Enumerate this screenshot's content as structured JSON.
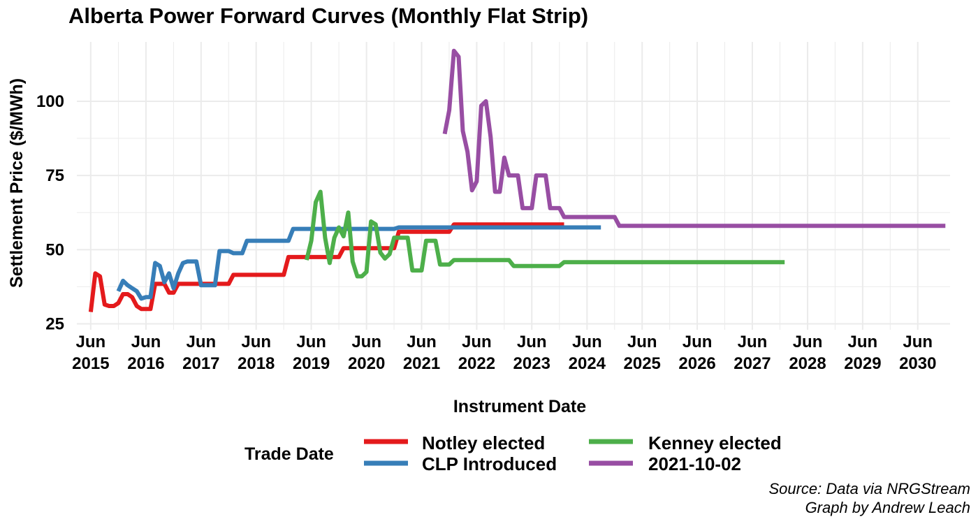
{
  "chart_data": {
    "type": "line",
    "title": "Alberta Power Forward Curves (Monthly Flat Strip)",
    "xlabel": "Instrument Date",
    "ylabel": "Settlement Price ($/MWh)",
    "xlim": [
      "2015-03-01",
      "2031-01-01"
    ],
    "ylim": [
      23,
      120
    ],
    "yticks": [
      25,
      50,
      75,
      100
    ],
    "xticks": [
      {
        "date": "2015-06-01",
        "line1": "Jun",
        "line2": "2015"
      },
      {
        "date": "2016-06-01",
        "line1": "Jun",
        "line2": "2016"
      },
      {
        "date": "2017-06-01",
        "line1": "Jun",
        "line2": "2017"
      },
      {
        "date": "2018-06-01",
        "line1": "Jun",
        "line2": "2018"
      },
      {
        "date": "2019-06-01",
        "line1": "Jun",
        "line2": "2019"
      },
      {
        "date": "2020-06-01",
        "line1": "Jun",
        "line2": "2020"
      },
      {
        "date": "2021-06-01",
        "line1": "Jun",
        "line2": "2021"
      },
      {
        "date": "2022-06-01",
        "line1": "Jun",
        "line2": "2022"
      },
      {
        "date": "2023-06-01",
        "line1": "Jun",
        "line2": "2023"
      },
      {
        "date": "2024-06-01",
        "line1": "Jun",
        "line2": "2024"
      },
      {
        "date": "2025-06-01",
        "line1": "Jun",
        "line2": "2025"
      },
      {
        "date": "2026-06-01",
        "line1": "Jun",
        "line2": "2026"
      },
      {
        "date": "2027-06-01",
        "line1": "Jun",
        "line2": "2027"
      },
      {
        "date": "2028-06-01",
        "line1": "Jun",
        "line2": "2028"
      },
      {
        "date": "2029-06-01",
        "line1": "Jun",
        "line2": "2029"
      },
      {
        "date": "2030-06-01",
        "line1": "Jun",
        "line2": "2030"
      }
    ],
    "grid": true,
    "legend": {
      "title": "Trade Date",
      "position": "bottom"
    },
    "series": [
      {
        "name": "Notley elected",
        "color": "#E41A1C",
        "points": [
          [
            "2015-06-01",
            29
          ],
          [
            "2015-07-01",
            42
          ],
          [
            "2015-08-01",
            41
          ],
          [
            "2015-09-01",
            31.5
          ],
          [
            "2015-10-01",
            31
          ],
          [
            "2015-11-01",
            31
          ],
          [
            "2015-12-01",
            32
          ],
          [
            "2016-01-01",
            35
          ],
          [
            "2016-02-01",
            35
          ],
          [
            "2016-03-01",
            34
          ],
          [
            "2016-04-01",
            31
          ],
          [
            "2016-05-01",
            30
          ],
          [
            "2016-06-01",
            30
          ],
          [
            "2016-07-01",
            30
          ],
          [
            "2016-08-01",
            38.5
          ],
          [
            "2016-09-01",
            38.5
          ],
          [
            "2016-10-01",
            38.5
          ],
          [
            "2016-11-01",
            35.5
          ],
          [
            "2016-12-01",
            35.5
          ],
          [
            "2017-01-01",
            38.5
          ],
          [
            "2017-12-01",
            38.5
          ],
          [
            "2018-01-01",
            41.5
          ],
          [
            "2018-12-01",
            41.5
          ],
          [
            "2019-01-01",
            47.5
          ],
          [
            "2019-12-01",
            47.5
          ],
          [
            "2020-01-01",
            50.5
          ],
          [
            "2020-12-01",
            50.5
          ],
          [
            "2021-01-01",
            56
          ],
          [
            "2021-12-01",
            56
          ],
          [
            "2022-01-01",
            58.5
          ],
          [
            "2024-01-01",
            58.5
          ]
        ]
      },
      {
        "name": "CLP Introduced",
        "color": "#377EB8",
        "points": [
          [
            "2015-12-01",
            36
          ],
          [
            "2016-01-01",
            39.5
          ],
          [
            "2016-02-01",
            38
          ],
          [
            "2016-03-01",
            37
          ],
          [
            "2016-04-01",
            36
          ],
          [
            "2016-05-01",
            33.5
          ],
          [
            "2016-06-01",
            34
          ],
          [
            "2016-07-01",
            34
          ],
          [
            "2016-08-01",
            45.5
          ],
          [
            "2016-09-01",
            44.5
          ],
          [
            "2016-10-01",
            39
          ],
          [
            "2016-11-01",
            42
          ],
          [
            "2016-12-01",
            37
          ],
          [
            "2017-01-01",
            42
          ],
          [
            "2017-02-01",
            45.5
          ],
          [
            "2017-03-01",
            46
          ],
          [
            "2017-04-01",
            46
          ],
          [
            "2017-05-01",
            46
          ],
          [
            "2017-06-01",
            38
          ],
          [
            "2017-07-01",
            38
          ],
          [
            "2017-08-01",
            38
          ],
          [
            "2017-09-01",
            38
          ],
          [
            "2017-10-01",
            49.5
          ],
          [
            "2017-11-01",
            49.5
          ],
          [
            "2017-12-01",
            49.5
          ],
          [
            "2018-01-01",
            48.8
          ],
          [
            "2018-02-01",
            48.8
          ],
          [
            "2018-03-01",
            48.8
          ],
          [
            "2018-04-01",
            53
          ],
          [
            "2018-12-01",
            53
          ],
          [
            "2019-01-01",
            53
          ],
          [
            "2019-02-01",
            57
          ],
          [
            "2020-12-01",
            57
          ],
          [
            "2021-01-01",
            57.5
          ],
          [
            "2024-09-01",
            57.5
          ]
        ]
      },
      {
        "name": "Kenney elected",
        "color": "#4DAF4A",
        "points": [
          [
            "2019-05-01",
            46.5
          ],
          [
            "2019-06-01",
            53
          ],
          [
            "2019-07-01",
            66
          ],
          [
            "2019-08-01",
            69.5
          ],
          [
            "2019-09-01",
            54
          ],
          [
            "2019-10-01",
            45.5
          ],
          [
            "2019-11-01",
            54
          ],
          [
            "2019-12-01",
            57.5
          ],
          [
            "2020-01-01",
            54.5
          ],
          [
            "2020-02-01",
            62.5
          ],
          [
            "2020-03-01",
            46
          ],
          [
            "2020-04-01",
            41
          ],
          [
            "2020-05-01",
            41
          ],
          [
            "2020-06-01",
            42.5
          ],
          [
            "2020-07-01",
            59.5
          ],
          [
            "2020-08-01",
            58.5
          ],
          [
            "2020-09-01",
            49
          ],
          [
            "2020-10-01",
            47
          ],
          [
            "2020-11-01",
            48.5
          ],
          [
            "2020-12-01",
            54
          ],
          [
            "2021-01-01",
            54
          ],
          [
            "2021-02-01",
            54
          ],
          [
            "2021-03-01",
            54
          ],
          [
            "2021-04-01",
            43
          ],
          [
            "2021-05-01",
            43
          ],
          [
            "2021-06-01",
            43
          ],
          [
            "2021-07-01",
            53
          ],
          [
            "2021-08-01",
            53
          ],
          [
            "2021-09-01",
            53
          ],
          [
            "2021-10-01",
            45
          ],
          [
            "2021-11-01",
            45
          ],
          [
            "2021-12-01",
            45
          ],
          [
            "2022-01-01",
            46.5
          ],
          [
            "2022-12-01",
            46.5
          ],
          [
            "2023-01-01",
            46.5
          ],
          [
            "2023-02-01",
            44.5
          ],
          [
            "2023-12-01",
            44.5
          ],
          [
            "2024-01-01",
            45.8
          ],
          [
            "2028-01-01",
            45.8
          ]
        ]
      },
      {
        "name": "2021-10-02",
        "color": "#984EA3",
        "points": [
          [
            "2021-11-01",
            89
          ],
          [
            "2021-12-01",
            97
          ],
          [
            "2022-01-01",
            117
          ],
          [
            "2022-02-01",
            115
          ],
          [
            "2022-03-01",
            90
          ],
          [
            "2022-04-01",
            83
          ],
          [
            "2022-05-01",
            70
          ],
          [
            "2022-06-01",
            73
          ],
          [
            "2022-07-01",
            98.5
          ],
          [
            "2022-08-01",
            100
          ],
          [
            "2022-09-01",
            88
          ],
          [
            "2022-10-01",
            69.5
          ],
          [
            "2022-11-01",
            69.5
          ],
          [
            "2022-12-01",
            81
          ],
          [
            "2023-01-01",
            75
          ],
          [
            "2023-02-01",
            75
          ],
          [
            "2023-03-01",
            75
          ],
          [
            "2023-04-01",
            64
          ],
          [
            "2023-05-01",
            64
          ],
          [
            "2023-06-01",
            64
          ],
          [
            "2023-07-01",
            75
          ],
          [
            "2023-08-01",
            75
          ],
          [
            "2023-09-01",
            75
          ],
          [
            "2023-10-01",
            64
          ],
          [
            "2023-11-01",
            64
          ],
          [
            "2023-12-01",
            64
          ],
          [
            "2024-01-01",
            61
          ],
          [
            "2024-12-01",
            61
          ],
          [
            "2025-01-01",
            58
          ],
          [
            "2030-12-01",
            58
          ]
        ]
      }
    ],
    "caption": [
      "Source: Data via NRGStream",
      "Graph by Andrew Leach"
    ]
  }
}
